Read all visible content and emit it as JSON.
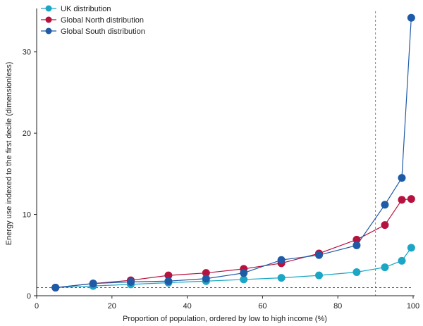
{
  "chart_data": {
    "type": "line",
    "title": "",
    "xlabel": "Proportion of population, ordered by low to high income (%)",
    "ylabel": "Energy use indexed to the first decile (dimensionless)",
    "xlim": [
      0,
      100
    ],
    "ylim": [
      0,
      35
    ],
    "xticks": [
      0,
      20,
      40,
      60,
      80,
      100
    ],
    "yticks": [
      0,
      10,
      20,
      30
    ],
    "legend_position": "top-left",
    "grid": false,
    "reference_lines": [
      {
        "orientation": "vertical",
        "value": 90,
        "style": "dashed"
      },
      {
        "orientation": "horizontal",
        "value": 1,
        "style": "dashed"
      }
    ],
    "series": [
      {
        "name": "UK distribution",
        "color": "#1aa6c4",
        "points": [
          {
            "x": 5,
            "y": 1.0
          },
          {
            "x": 15,
            "y": 1.2
          },
          {
            "x": 25,
            "y": 1.4
          },
          {
            "x": 35,
            "y": 1.6
          },
          {
            "x": 45,
            "y": 1.8
          },
          {
            "x": 55,
            "y": 2.0
          },
          {
            "x": 65,
            "y": 2.2
          },
          {
            "x": 75,
            "y": 2.5
          },
          {
            "x": 85,
            "y": 2.9
          },
          {
            "x": 92.5,
            "y": 3.5
          },
          {
            "x": 97,
            "y": 4.3
          },
          {
            "x": 99.5,
            "y": 5.9
          }
        ]
      },
      {
        "name": "Global North distribution",
        "color": "#b5123f",
        "points": [
          {
            "x": 5,
            "y": 1.0
          },
          {
            "x": 15,
            "y": 1.5
          },
          {
            "x": 25,
            "y": 1.9
          },
          {
            "x": 35,
            "y": 2.5
          },
          {
            "x": 45,
            "y": 2.8
          },
          {
            "x": 55,
            "y": 3.3
          },
          {
            "x": 65,
            "y": 4.0
          },
          {
            "x": 75,
            "y": 5.2
          },
          {
            "x": 85,
            "y": 6.9
          },
          {
            "x": 92.5,
            "y": 8.7
          },
          {
            "x": 97,
            "y": 11.8
          },
          {
            "x": 99.5,
            "y": 11.9
          }
        ]
      },
      {
        "name": "Global South distribution",
        "color": "#1f5aa6",
        "points": [
          {
            "x": 5,
            "y": 1.0
          },
          {
            "x": 15,
            "y": 1.5
          },
          {
            "x": 25,
            "y": 1.7
          },
          {
            "x": 35,
            "y": 1.8
          },
          {
            "x": 45,
            "y": 2.1
          },
          {
            "x": 55,
            "y": 2.8
          },
          {
            "x": 65,
            "y": 4.4
          },
          {
            "x": 75,
            "y": 5.0
          },
          {
            "x": 85,
            "y": 6.2
          },
          {
            "x": 92.5,
            "y": 11.2
          },
          {
            "x": 97,
            "y": 14.5
          },
          {
            "x": 99.5,
            "y": 34.2
          }
        ]
      }
    ]
  }
}
